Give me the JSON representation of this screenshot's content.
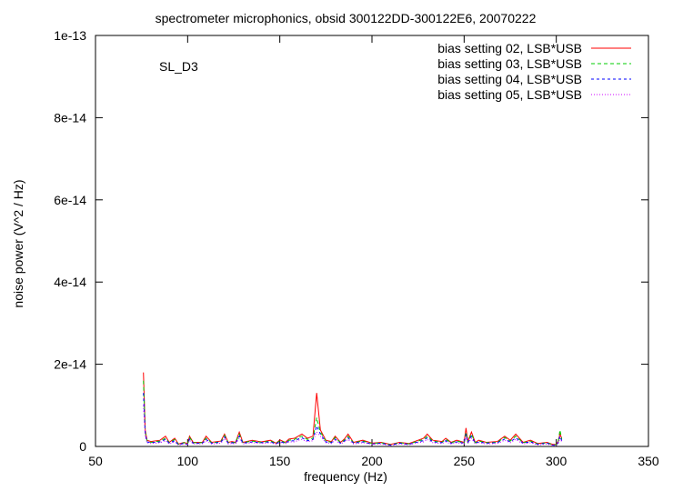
{
  "chart_data": {
    "type": "line",
    "title": "spectrometer microphonics, obsid 300122DD-300122E6, 20070222",
    "annotation": "SL_D3",
    "xlabel": "frequency (Hz)",
    "ylabel": "noise power (V^2 / Hz)",
    "xlim": [
      50,
      350
    ],
    "ylim": [
      0,
      1e-13
    ],
    "xticks": [
      50,
      100,
      150,
      200,
      250,
      300,
      350
    ],
    "xtick_labels": [
      "50",
      "100",
      "150",
      "200",
      "250",
      "300",
      "350"
    ],
    "yticks": [
      0,
      2e-14,
      4e-14,
      6e-14,
      8e-14,
      1e-13
    ],
    "ytick_labels": [
      "0",
      "2e-14",
      "4e-14",
      "6e-14",
      "8e-14",
      "1e-13"
    ],
    "grid": false,
    "legend_position": "top-right",
    "x": [
      76,
      77,
      78,
      80,
      85,
      88,
      90,
      93,
      95,
      98,
      100,
      101,
      103,
      108,
      110,
      113,
      118,
      120,
      122,
      124,
      126,
      128,
      130,
      135,
      140,
      145,
      148,
      150,
      153,
      155,
      158,
      160,
      162,
      165,
      168,
      170,
      172,
      175,
      178,
      180,
      183,
      185,
      187,
      190,
      195,
      200,
      205,
      210,
      215,
      220,
      225,
      228,
      230,
      233,
      238,
      240,
      243,
      246,
      250,
      251,
      252,
      254,
      256,
      258,
      262,
      268,
      272,
      275,
      278,
      282,
      286,
      290,
      295,
      298,
      300,
      301,
      302,
      303
    ],
    "series": [
      {
        "name": "bias setting 02, LSB*USB",
        "color": "#ff0000",
        "values": [
          1.8e-14,
          4e-15,
          1.5e-15,
          1.2e-15,
          1.5e-15,
          2.5e-15,
          1e-15,
          2e-15,
          6e-16,
          1e-15,
          7e-16,
          2.5e-15,
          1e-15,
          1e-15,
          2.5e-15,
          1e-15,
          1.3e-15,
          3e-15,
          1e-15,
          1.2e-15,
          1e-15,
          3.5e-15,
          1e-15,
          1.5e-15,
          1.1e-15,
          1.5e-15,
          8e-16,
          1.6e-15,
          1e-15,
          1.8e-15,
          2e-15,
          2.5e-15,
          3e-15,
          2e-15,
          2.5e-15,
          1.3e-14,
          4e-15,
          1.5e-15,
          1.2e-15,
          2.5e-15,
          1e-15,
          1.8e-15,
          3e-15,
          1e-15,
          1.5e-15,
          8e-16,
          1e-15,
          5e-16,
          1e-15,
          7e-16,
          1.5e-15,
          2e-15,
          3e-15,
          1.5e-15,
          1.2e-15,
          2e-15,
          1e-15,
          1.5e-15,
          1e-15,
          4.5e-15,
          1.2e-15,
          3.5e-15,
          1e-15,
          1.5e-15,
          1e-15,
          1.2e-15,
          2.5e-15,
          1.5e-15,
          3e-15,
          1e-15,
          1.5e-15,
          7e-16,
          1e-15,
          5e-16,
          5e-16,
          1.2e-15,
          3e-15,
          2e-15
        ]
      },
      {
        "name": "bias setting 03, LSB*USB",
        "color": "#00cc00",
        "values": [
          1.6e-14,
          3.5e-15,
          1.3e-15,
          1e-15,
          1.3e-15,
          2e-15,
          9e-16,
          1.7e-15,
          5e-16,
          9e-16,
          6e-16,
          2.2e-15,
          9e-16,
          9e-16,
          2e-15,
          9e-16,
          1.1e-15,
          2.7e-15,
          9e-16,
          1e-15,
          9e-16,
          3e-15,
          9e-16,
          1.3e-15,
          1e-15,
          1.3e-15,
          7e-16,
          1.4e-15,
          9e-16,
          1.5e-15,
          1.7e-15,
          2.2e-15,
          2.5e-15,
          1.7e-15,
          2e-15,
          7e-15,
          3.5e-15,
          1.3e-15,
          1e-15,
          2.2e-15,
          9e-16,
          1.5e-15,
          2.5e-15,
          9e-16,
          1.3e-15,
          7e-16,
          9e-16,
          4e-16,
          9e-16,
          6e-16,
          1.3e-15,
          1.7e-15,
          2.5e-15,
          1.3e-15,
          1e-15,
          1.7e-15,
          9e-16,
          1.3e-15,
          9e-16,
          3.5e-15,
          1e-15,
          3e-15,
          9e-16,
          1.3e-15,
          9e-16,
          1e-15,
          2.2e-15,
          1.3e-15,
          2.5e-15,
          9e-16,
          1.3e-15,
          6e-16,
          9e-16,
          4e-16,
          4e-16,
          1e-15,
          4e-15,
          1.7e-15
        ]
      },
      {
        "name": "bias setting 04, LSB*USB",
        "color": "#0000ff",
        "values": [
          1.3e-14,
          3e-15,
          1.1e-15,
          9e-16,
          1.1e-15,
          1.7e-15,
          8e-16,
          1.4e-15,
          4e-16,
          8e-16,
          5e-16,
          1.8e-15,
          8e-16,
          8e-16,
          1.7e-15,
          8e-16,
          1e-15,
          2.3e-15,
          8e-16,
          9e-16,
          8e-16,
          2.5e-15,
          8e-16,
          1.1e-15,
          9e-16,
          1.1e-15,
          6e-16,
          1.2e-15,
          8e-16,
          1.3e-15,
          1.4e-15,
          1.8e-15,
          2.1e-15,
          1.4e-15,
          1.7e-15,
          5e-15,
          3e-15,
          1.1e-15,
          9e-16,
          1.8e-15,
          8e-16,
          1.3e-15,
          2.1e-15,
          8e-16,
          1.1e-15,
          6e-16,
          8e-16,
          3e-16,
          8e-16,
          5e-16,
          1.1e-15,
          1.4e-15,
          2.1e-15,
          1.1e-15,
          9e-16,
          1.4e-15,
          8e-16,
          1.1e-15,
          8e-16,
          3e-15,
          9e-16,
          2.5e-15,
          8e-16,
          1.1e-15,
          8e-16,
          9e-16,
          1.8e-15,
          1.1e-15,
          2.1e-15,
          8e-16,
          1.1e-15,
          5e-16,
          8e-16,
          3e-16,
          3e-16,
          9e-16,
          2.5e-15,
          1.4e-15
        ]
      },
      {
        "name": "bias setting 05, LSB*USB",
        "color": "#cc00ff",
        "values": [
          1e-14,
          2.5e-15,
          9e-16,
          7e-16,
          9e-16,
          1.4e-15,
          6e-16,
          1.1e-15,
          3e-16,
          6e-16,
          4e-16,
          1.5e-15,
          6e-16,
          6e-16,
          1.4e-15,
          6e-16,
          8e-16,
          1.9e-15,
          6e-16,
          7e-16,
          6e-16,
          2e-15,
          6e-16,
          9e-16,
          7e-16,
          9e-16,
          5e-16,
          1e-15,
          6e-16,
          1.1e-15,
          1.1e-15,
          1.5e-15,
          1.7e-15,
          1.1e-15,
          1.4e-15,
          3.5e-15,
          2.5e-15,
          9e-16,
          7e-16,
          1.5e-15,
          6e-16,
          1.1e-15,
          1.7e-15,
          6e-16,
          9e-16,
          5e-16,
          6e-16,
          2e-16,
          6e-16,
          4e-16,
          9e-16,
          1.1e-15,
          1.7e-15,
          9e-16,
          7e-16,
          1.1e-15,
          6e-16,
          9e-16,
          6e-16,
          2.5e-15,
          7e-16,
          2e-15,
          6e-16,
          9e-16,
          6e-16,
          7e-16,
          1.5e-15,
          9e-16,
          1.7e-15,
          6e-16,
          9e-16,
          4e-16,
          6e-16,
          2e-16,
          2e-16,
          7e-16,
          2e-15,
          1.1e-15
        ]
      }
    ]
  }
}
